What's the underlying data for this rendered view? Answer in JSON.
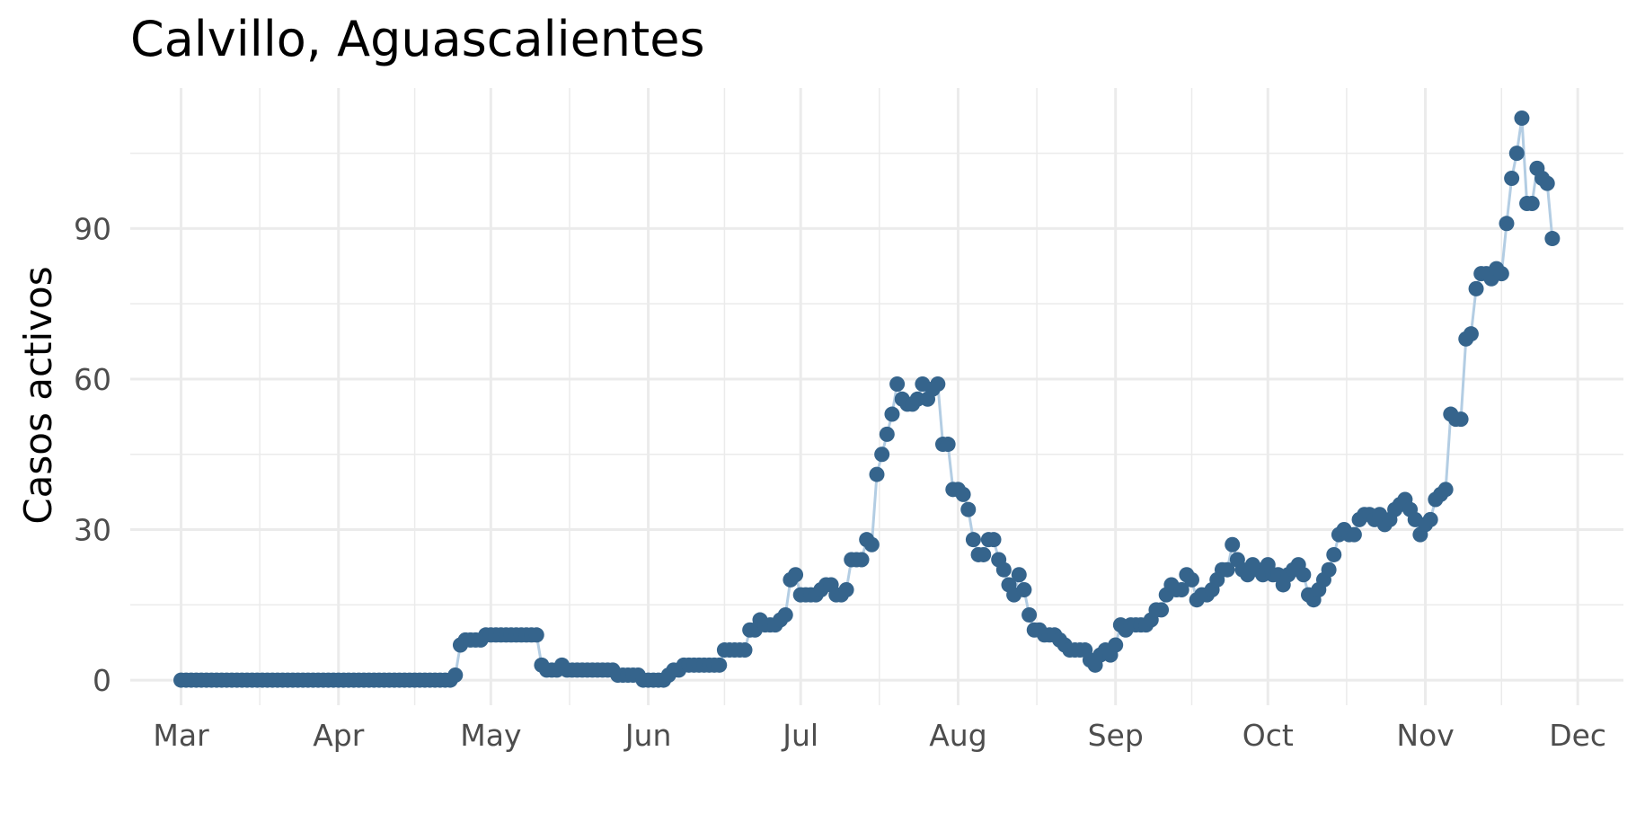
{
  "chart_data": {
    "type": "line",
    "title": "Calvillo, Aguascalientes",
    "xlabel": "",
    "ylabel": "Casos activos",
    "x_type": "date",
    "xlim": [
      "2020-02-20",
      "2020-12-10"
    ],
    "ylim": [
      -5,
      118
    ],
    "x_ticks": [
      {
        "date": "2020-03-01",
        "label": "Mar"
      },
      {
        "date": "2020-04-01",
        "label": "Apr"
      },
      {
        "date": "2020-05-01",
        "label": "May"
      },
      {
        "date": "2020-06-01",
        "label": "Jun"
      },
      {
        "date": "2020-07-01",
        "label": "Jul"
      },
      {
        "date": "2020-08-01",
        "label": "Aug"
      },
      {
        "date": "2020-09-01",
        "label": "Sep"
      },
      {
        "date": "2020-10-01",
        "label": "Oct"
      },
      {
        "date": "2020-11-01",
        "label": "Nov"
      },
      {
        "date": "2020-12-01",
        "label": "Dec"
      }
    ],
    "y_ticks": [
      0,
      30,
      60,
      90
    ],
    "grid": true,
    "line_color": "#b3cde3",
    "point_color": "#35648c",
    "series": [
      {
        "points": [
          [
            "2020-03-01",
            0
          ],
          [
            "2020-03-02",
            0
          ],
          [
            "2020-03-03",
            0
          ],
          [
            "2020-03-04",
            0
          ],
          [
            "2020-03-05",
            0
          ],
          [
            "2020-03-06",
            0
          ],
          [
            "2020-03-07",
            0
          ],
          [
            "2020-03-08",
            0
          ],
          [
            "2020-03-09",
            0
          ],
          [
            "2020-03-10",
            0
          ],
          [
            "2020-03-11",
            0
          ],
          [
            "2020-03-12",
            0
          ],
          [
            "2020-03-13",
            0
          ],
          [
            "2020-03-14",
            0
          ],
          [
            "2020-03-15",
            0
          ],
          [
            "2020-03-16",
            0
          ],
          [
            "2020-03-17",
            0
          ],
          [
            "2020-03-18",
            0
          ],
          [
            "2020-03-19",
            0
          ],
          [
            "2020-03-20",
            0
          ],
          [
            "2020-03-21",
            0
          ],
          [
            "2020-03-22",
            0
          ],
          [
            "2020-03-23",
            0
          ],
          [
            "2020-03-24",
            0
          ],
          [
            "2020-03-25",
            0
          ],
          [
            "2020-03-26",
            0
          ],
          [
            "2020-03-27",
            0
          ],
          [
            "2020-03-28",
            0
          ],
          [
            "2020-03-29",
            0
          ],
          [
            "2020-03-30",
            0
          ],
          [
            "2020-03-31",
            0
          ],
          [
            "2020-04-01",
            0
          ],
          [
            "2020-04-02",
            0
          ],
          [
            "2020-04-03",
            0
          ],
          [
            "2020-04-04",
            0
          ],
          [
            "2020-04-05",
            0
          ],
          [
            "2020-04-06",
            0
          ],
          [
            "2020-04-07",
            0
          ],
          [
            "2020-04-08",
            0
          ],
          [
            "2020-04-09",
            0
          ],
          [
            "2020-04-10",
            0
          ],
          [
            "2020-04-11",
            0
          ],
          [
            "2020-04-12",
            0
          ],
          [
            "2020-04-13",
            0
          ],
          [
            "2020-04-14",
            0
          ],
          [
            "2020-04-15",
            0
          ],
          [
            "2020-04-16",
            0
          ],
          [
            "2020-04-17",
            0
          ],
          [
            "2020-04-18",
            0
          ],
          [
            "2020-04-19",
            0
          ],
          [
            "2020-04-20",
            0
          ],
          [
            "2020-04-21",
            0
          ],
          [
            "2020-04-22",
            0
          ],
          [
            "2020-04-23",
            0
          ],
          [
            "2020-04-24",
            1
          ],
          [
            "2020-04-25",
            7
          ],
          [
            "2020-04-26",
            8
          ],
          [
            "2020-04-27",
            8
          ],
          [
            "2020-04-28",
            8
          ],
          [
            "2020-04-29",
            8
          ],
          [
            "2020-04-30",
            9
          ],
          [
            "2020-05-01",
            9
          ],
          [
            "2020-05-02",
            9
          ],
          [
            "2020-05-03",
            9
          ],
          [
            "2020-05-04",
            9
          ],
          [
            "2020-05-05",
            9
          ],
          [
            "2020-05-06",
            9
          ],
          [
            "2020-05-07",
            9
          ],
          [
            "2020-05-08",
            9
          ],
          [
            "2020-05-09",
            9
          ],
          [
            "2020-05-10",
            9
          ],
          [
            "2020-05-11",
            3
          ],
          [
            "2020-05-12",
            2
          ],
          [
            "2020-05-13",
            2
          ],
          [
            "2020-05-14",
            2
          ],
          [
            "2020-05-15",
            3
          ],
          [
            "2020-05-16",
            2
          ],
          [
            "2020-05-17",
            2
          ],
          [
            "2020-05-18",
            2
          ],
          [
            "2020-05-19",
            2
          ],
          [
            "2020-05-20",
            2
          ],
          [
            "2020-05-21",
            2
          ],
          [
            "2020-05-22",
            2
          ],
          [
            "2020-05-23",
            2
          ],
          [
            "2020-05-24",
            2
          ],
          [
            "2020-05-25",
            2
          ],
          [
            "2020-05-26",
            1
          ],
          [
            "2020-05-27",
            1
          ],
          [
            "2020-05-28",
            1
          ],
          [
            "2020-05-29",
            1
          ],
          [
            "2020-05-30",
            1
          ],
          [
            "2020-05-31",
            0
          ],
          [
            "2020-06-01",
            0
          ],
          [
            "2020-06-02",
            0
          ],
          [
            "2020-06-03",
            0
          ],
          [
            "2020-06-04",
            0
          ],
          [
            "2020-06-05",
            1
          ],
          [
            "2020-06-06",
            2
          ],
          [
            "2020-06-07",
            2
          ],
          [
            "2020-06-08",
            3
          ],
          [
            "2020-06-09",
            3
          ],
          [
            "2020-06-10",
            3
          ],
          [
            "2020-06-11",
            3
          ],
          [
            "2020-06-12",
            3
          ],
          [
            "2020-06-13",
            3
          ],
          [
            "2020-06-14",
            3
          ],
          [
            "2020-06-15",
            3
          ],
          [
            "2020-06-16",
            6
          ],
          [
            "2020-06-17",
            6
          ],
          [
            "2020-06-18",
            6
          ],
          [
            "2020-06-19",
            6
          ],
          [
            "2020-06-20",
            6
          ],
          [
            "2020-06-21",
            10
          ],
          [
            "2020-06-22",
            10
          ],
          [
            "2020-06-23",
            12
          ],
          [
            "2020-06-24",
            11
          ],
          [
            "2020-06-25",
            11
          ],
          [
            "2020-06-26",
            11
          ],
          [
            "2020-06-27",
            12
          ],
          [
            "2020-06-28",
            13
          ],
          [
            "2020-06-29",
            20
          ],
          [
            "2020-06-30",
            21
          ],
          [
            "2020-07-01",
            17
          ],
          [
            "2020-07-02",
            17
          ],
          [
            "2020-07-03",
            17
          ],
          [
            "2020-07-04",
            17
          ],
          [
            "2020-07-05",
            18
          ],
          [
            "2020-07-06",
            19
          ],
          [
            "2020-07-07",
            19
          ],
          [
            "2020-07-08",
            17
          ],
          [
            "2020-07-09",
            17
          ],
          [
            "2020-07-10",
            18
          ],
          [
            "2020-07-11",
            24
          ],
          [
            "2020-07-12",
            24
          ],
          [
            "2020-07-13",
            24
          ],
          [
            "2020-07-14",
            28
          ],
          [
            "2020-07-15",
            27
          ],
          [
            "2020-07-16",
            41
          ],
          [
            "2020-07-17",
            45
          ],
          [
            "2020-07-18",
            49
          ],
          [
            "2020-07-19",
            53
          ],
          [
            "2020-07-20",
            59
          ],
          [
            "2020-07-21",
            56
          ],
          [
            "2020-07-22",
            55
          ],
          [
            "2020-07-23",
            55
          ],
          [
            "2020-07-24",
            56
          ],
          [
            "2020-07-25",
            59
          ],
          [
            "2020-07-26",
            56
          ],
          [
            "2020-07-27",
            58
          ],
          [
            "2020-07-28",
            59
          ],
          [
            "2020-07-29",
            47
          ],
          [
            "2020-07-30",
            47
          ],
          [
            "2020-07-31",
            38
          ],
          [
            "2020-08-01",
            38
          ],
          [
            "2020-08-02",
            37
          ],
          [
            "2020-08-03",
            34
          ],
          [
            "2020-08-04",
            28
          ],
          [
            "2020-08-05",
            25
          ],
          [
            "2020-08-06",
            25
          ],
          [
            "2020-08-07",
            28
          ],
          [
            "2020-08-08",
            28
          ],
          [
            "2020-08-09",
            24
          ],
          [
            "2020-08-10",
            22
          ],
          [
            "2020-08-11",
            19
          ],
          [
            "2020-08-12",
            17
          ],
          [
            "2020-08-13",
            21
          ],
          [
            "2020-08-14",
            18
          ],
          [
            "2020-08-15",
            13
          ],
          [
            "2020-08-16",
            10
          ],
          [
            "2020-08-17",
            10
          ],
          [
            "2020-08-18",
            9
          ],
          [
            "2020-08-19",
            9
          ],
          [
            "2020-08-20",
            9
          ],
          [
            "2020-08-21",
            8
          ],
          [
            "2020-08-22",
            7
          ],
          [
            "2020-08-23",
            6
          ],
          [
            "2020-08-24",
            6
          ],
          [
            "2020-08-25",
            6
          ],
          [
            "2020-08-26",
            6
          ],
          [
            "2020-08-27",
            4
          ],
          [
            "2020-08-28",
            3
          ],
          [
            "2020-08-29",
            5
          ],
          [
            "2020-08-30",
            6
          ],
          [
            "2020-08-31",
            5
          ],
          [
            "2020-09-01",
            7
          ],
          [
            "2020-09-02",
            11
          ],
          [
            "2020-09-03",
            10
          ],
          [
            "2020-09-04",
            11
          ],
          [
            "2020-09-05",
            11
          ],
          [
            "2020-09-06",
            11
          ],
          [
            "2020-09-07",
            11
          ],
          [
            "2020-09-08",
            12
          ],
          [
            "2020-09-09",
            14
          ],
          [
            "2020-09-10",
            14
          ],
          [
            "2020-09-11",
            17
          ],
          [
            "2020-09-12",
            19
          ],
          [
            "2020-09-13",
            18
          ],
          [
            "2020-09-14",
            18
          ],
          [
            "2020-09-15",
            21
          ],
          [
            "2020-09-16",
            20
          ],
          [
            "2020-09-17",
            16
          ],
          [
            "2020-09-18",
            17
          ],
          [
            "2020-09-19",
            17
          ],
          [
            "2020-09-20",
            18
          ],
          [
            "2020-09-21",
            20
          ],
          [
            "2020-09-22",
            22
          ],
          [
            "2020-09-23",
            22
          ],
          [
            "2020-09-24",
            27
          ],
          [
            "2020-09-25",
            24
          ],
          [
            "2020-09-26",
            22
          ],
          [
            "2020-09-27",
            21
          ],
          [
            "2020-09-28",
            23
          ],
          [
            "2020-09-29",
            22
          ],
          [
            "2020-09-30",
            21
          ],
          [
            "2020-10-01",
            23
          ],
          [
            "2020-10-02",
            21
          ],
          [
            "2020-10-03",
            21
          ],
          [
            "2020-10-04",
            19
          ],
          [
            "2020-10-05",
            21
          ],
          [
            "2020-10-06",
            22
          ],
          [
            "2020-10-07",
            23
          ],
          [
            "2020-10-08",
            21
          ],
          [
            "2020-10-09",
            17
          ],
          [
            "2020-10-10",
            16
          ],
          [
            "2020-10-11",
            18
          ],
          [
            "2020-10-12",
            20
          ],
          [
            "2020-10-13",
            22
          ],
          [
            "2020-10-14",
            25
          ],
          [
            "2020-10-15",
            29
          ],
          [
            "2020-10-16",
            30
          ],
          [
            "2020-10-17",
            29
          ],
          [
            "2020-10-18",
            29
          ],
          [
            "2020-10-19",
            32
          ],
          [
            "2020-10-20",
            33
          ],
          [
            "2020-10-21",
            33
          ],
          [
            "2020-10-22",
            32
          ],
          [
            "2020-10-23",
            33
          ],
          [
            "2020-10-24",
            31
          ],
          [
            "2020-10-25",
            32
          ],
          [
            "2020-10-26",
            34
          ],
          [
            "2020-10-27",
            35
          ],
          [
            "2020-10-28",
            36
          ],
          [
            "2020-10-29",
            34
          ],
          [
            "2020-10-30",
            32
          ],
          [
            "2020-10-31",
            29
          ],
          [
            "2020-11-01",
            31
          ],
          [
            "2020-11-02",
            32
          ],
          [
            "2020-11-03",
            36
          ],
          [
            "2020-11-04",
            37
          ],
          [
            "2020-11-05",
            38
          ],
          [
            "2020-11-06",
            53
          ],
          [
            "2020-11-07",
            52
          ],
          [
            "2020-11-08",
            52
          ],
          [
            "2020-11-09",
            68
          ],
          [
            "2020-11-10",
            69
          ],
          [
            "2020-11-11",
            78
          ],
          [
            "2020-11-12",
            81
          ],
          [
            "2020-11-13",
            81
          ],
          [
            "2020-11-14",
            80
          ],
          [
            "2020-11-15",
            82
          ],
          [
            "2020-11-16",
            81
          ],
          [
            "2020-11-17",
            91
          ],
          [
            "2020-11-18",
            100
          ],
          [
            "2020-11-19",
            105
          ],
          [
            "2020-11-20",
            112
          ],
          [
            "2020-11-21",
            95
          ],
          [
            "2020-11-22",
            95
          ],
          [
            "2020-11-23",
            102
          ],
          [
            "2020-11-24",
            100
          ],
          [
            "2020-11-25",
            99
          ],
          [
            "2020-11-26",
            88
          ]
        ]
      }
    ]
  }
}
